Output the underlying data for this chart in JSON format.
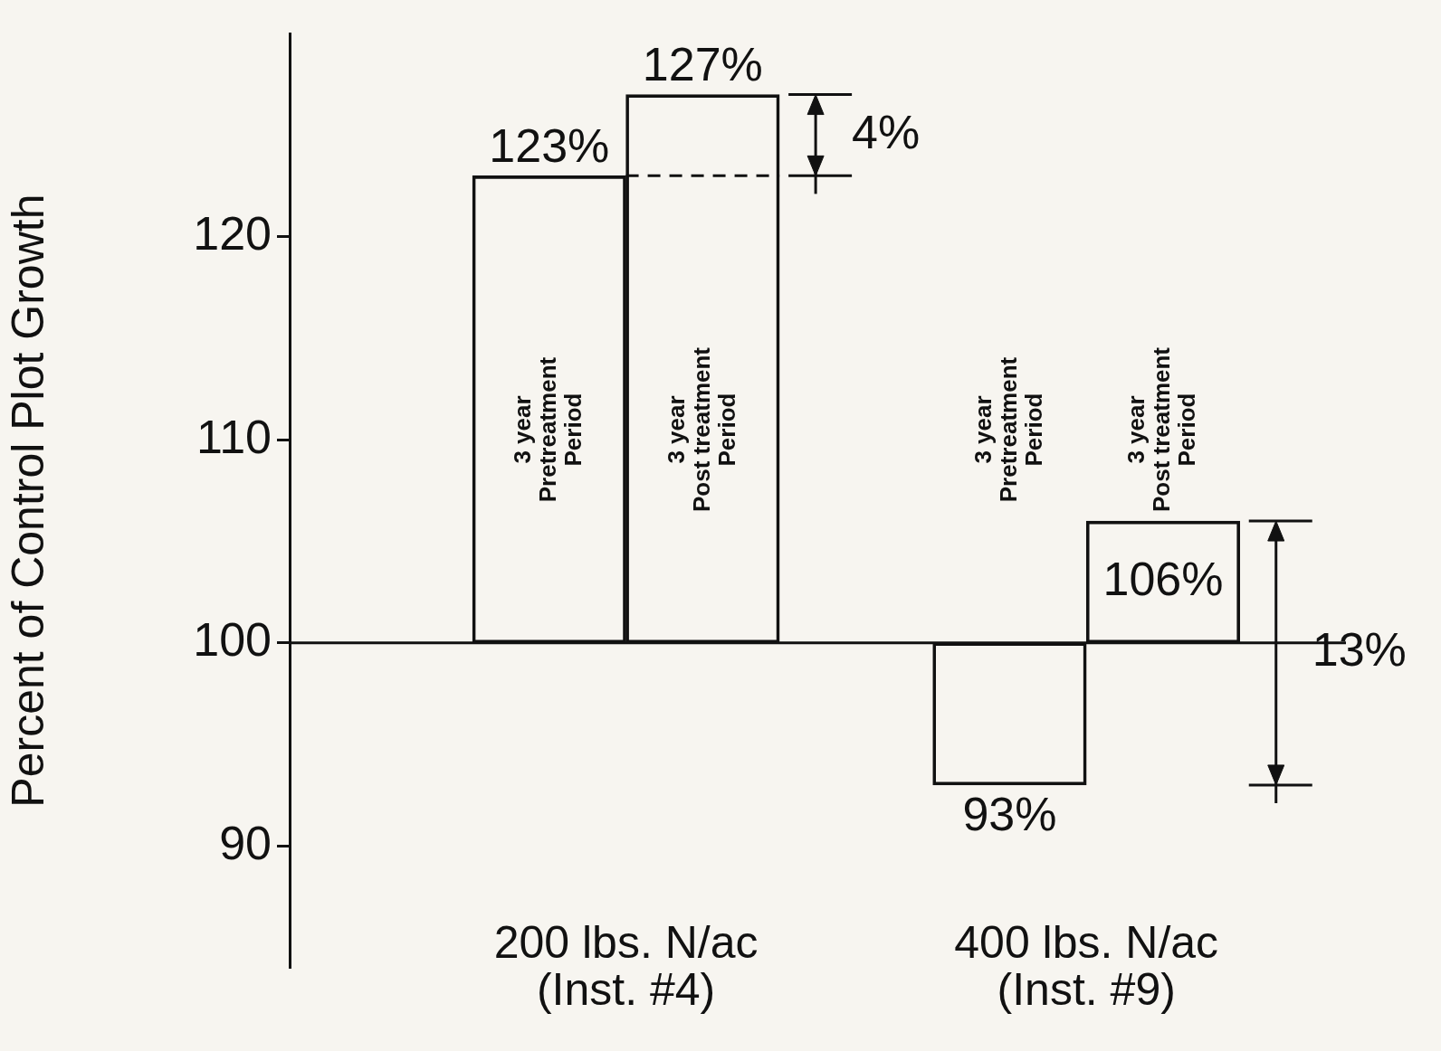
{
  "chart_data": {
    "type": "bar",
    "ylabel": "Percent of Control Plot Growth",
    "categories": [
      "3 year\nPretreatment\nPeriod",
      "3 year\nPost treatment\nPeriod",
      null,
      "3 year\nPretreatment\nPeriod",
      "3 year\nPost treatment\nPeriod"
    ],
    "values": [
      23,
      27,
      null,
      -7,
      6
    ],
    "base": [
      100,
      100,
      null,
      100,
      100
    ],
    "color": "#111111",
    "value_labels": [
      "123%",
      "127%",
      null,
      "93%",
      "106%"
    ],
    "ylim": [
      84,
      130
    ],
    "yticks": [
      90,
      100,
      110,
      120
    ],
    "grid": false,
    "legend": false,
    "ref_lines": [
      {
        "axis": "y",
        "value": 100,
        "color": "#111111"
      }
    ],
    "annotations": [
      "4%",
      "13%",
      "200 lbs. N/ac\n(Inst. #4)",
      "400 lbs. N/ac\n(Inst. #9)"
    ]
  }
}
